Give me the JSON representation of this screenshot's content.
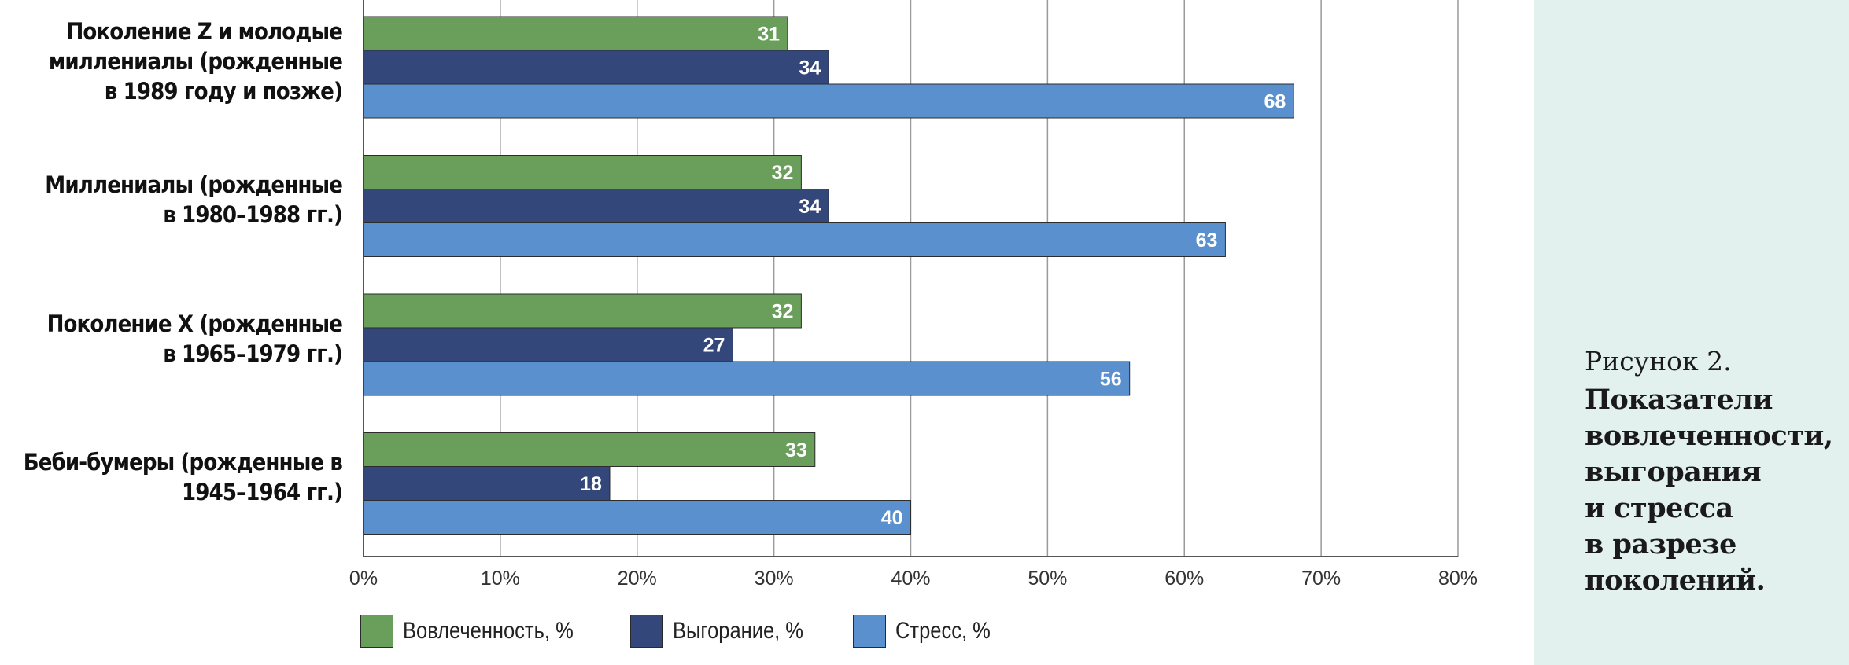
{
  "chart_data": {
    "type": "bar",
    "orientation": "horizontal",
    "categories": [
      "Поколение Z и молодые\nмиллениалы (рожденные\nв 1989 году и позже)",
      "Миллениалы (рожденные\nв 1980–1988 гг.)",
      "Поколение X (рожденные\nв 1965–1979 гг.)",
      "Беби-бумеры (рожденные в\n1945–1964 гг.)"
    ],
    "series": [
      {
        "name": "Вовлеченность, %",
        "color": "#6a9e5b",
        "values": [
          31,
          32,
          32,
          33
        ]
      },
      {
        "name": "Выгорание, %",
        "color": "#34477a",
        "values": [
          34,
          34,
          27,
          18
        ]
      },
      {
        "name": "Стресс, %",
        "color": "#5b90cf",
        "values": [
          68,
          63,
          56,
          40
        ]
      }
    ],
    "xlim": [
      0,
      80
    ],
    "xticks": [
      0,
      10,
      20,
      30,
      40,
      50,
      60,
      70,
      80
    ],
    "xtick_labels": [
      "0%",
      "10%",
      "20%",
      "30%",
      "40%",
      "50%",
      "60%",
      "70%",
      "80%"
    ],
    "grid": "vertical",
    "legend_position": "bottom"
  },
  "caption": {
    "number": "Рисунок 2.",
    "title": "Показатели\nвовлеченности,\nвыгорания\nи стресса\nв разрезе\nпоколений."
  }
}
